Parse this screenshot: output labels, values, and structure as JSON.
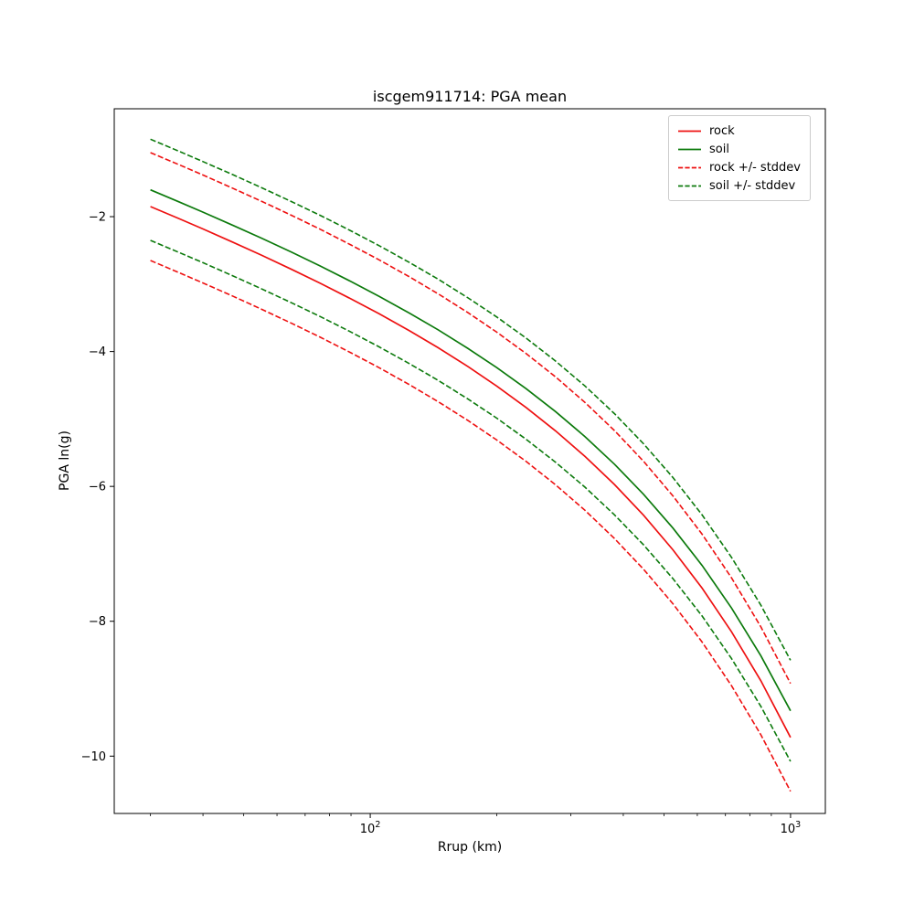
{
  "chart_data": {
    "type": "line",
    "title": "iscgem911714: PGA mean",
    "xlabel": "Rrup (km)",
    "ylabel": "PGA ln(g)",
    "x_scale": "log",
    "y_scale": "linear",
    "grid": false,
    "legend_position": "upper right",
    "xlim": [
      24.6,
      1210
    ],
    "ylim": [
      -10.85,
      -0.4
    ],
    "x_ticks": [
      {
        "v": 100,
        "label": "10^2"
      },
      {
        "v": 1000,
        "label": "10^3"
      }
    ],
    "y_ticks": [
      {
        "v": -2,
        "label": "−2"
      },
      {
        "v": -4,
        "label": "−4"
      },
      {
        "v": -6,
        "label": "−6"
      },
      {
        "v": -8,
        "label": "−8"
      },
      {
        "v": -10,
        "label": "−10"
      }
    ],
    "x": [
      30,
      35,
      40,
      47,
      55,
      65,
      76,
      90,
      105,
      124,
      145,
      171,
      200,
      235,
      276,
      324,
      381,
      447,
      525,
      616,
      724,
      850,
      1000
    ],
    "series": [
      {
        "name": "rock",
        "color": "#ee1111",
        "linestyle": "solid",
        "stddev": 0.8,
        "values": [
          -1.85,
          -2.027,
          -2.183,
          -2.376,
          -2.569,
          -2.781,
          -2.987,
          -3.219,
          -3.44,
          -3.692,
          -3.943,
          -4.225,
          -4.512,
          -4.831,
          -5.176,
          -5.553,
          -5.971,
          -6.428,
          -6.94,
          -7.509,
          -8.157,
          -8.884,
          -9.722
        ]
      },
      {
        "name": "soil",
        "color": "#0c7a0c",
        "linestyle": "solid",
        "stddev": 0.75,
        "values": [
          -1.602,
          -1.778,
          -1.933,
          -2.125,
          -2.317,
          -2.527,
          -2.731,
          -2.961,
          -3.181,
          -3.43,
          -3.677,
          -3.956,
          -4.238,
          -4.552,
          -4.891,
          -5.26,
          -5.67,
          -6.117,
          -6.617,
          -7.173,
          -7.804,
          -8.513,
          -9.328
        ]
      }
    ],
    "legend": [
      {
        "label": "rock",
        "color": "#ee1111",
        "linestyle": "solid"
      },
      {
        "label": "soil",
        "color": "#0c7a0c",
        "linestyle": "solid"
      },
      {
        "label": "rock +/- stddev",
        "color": "#ee1111",
        "linestyle": "dashed"
      },
      {
        "label": "soil +/- stddev",
        "color": "#0c7a0c",
        "linestyle": "dashed"
      }
    ]
  }
}
